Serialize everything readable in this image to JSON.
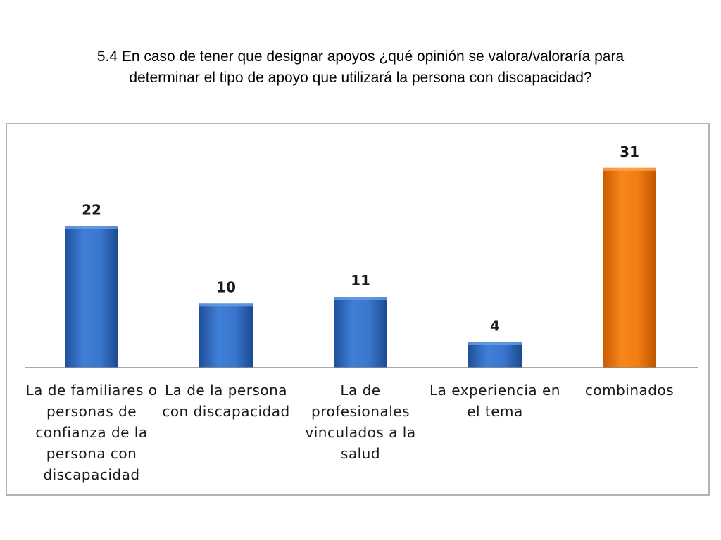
{
  "slide": {
    "title_line1": "5.4 En caso de tener que designar apoyos ¿qué opinión se valora/valoraría para",
    "title_line2": "determinar el tipo de apoyo que utilizará la persona con discapacidad?"
  },
  "chart_data": {
    "type": "bar",
    "categories": [
      "La de familiares o personas de confianza de la persona con discapacidad",
      "La de la persona con discapacidad",
      "La de profesionales vinculados a la salud",
      "La experiencia en el tema",
      "combinados"
    ],
    "values": [
      22,
      10,
      11,
      4,
      31
    ],
    "data_labels": [
      "22",
      "10",
      "11",
      "4",
      "31"
    ],
    "bar_colors": [
      "#2f6bc4",
      "#2f6bc4",
      "#2f6bc4",
      "#2f6bc4",
      "#f07a0e"
    ],
    "ylim": [
      0,
      36
    ],
    "grid": false,
    "legend": "none",
    "xlabel": "",
    "ylabel": ""
  }
}
